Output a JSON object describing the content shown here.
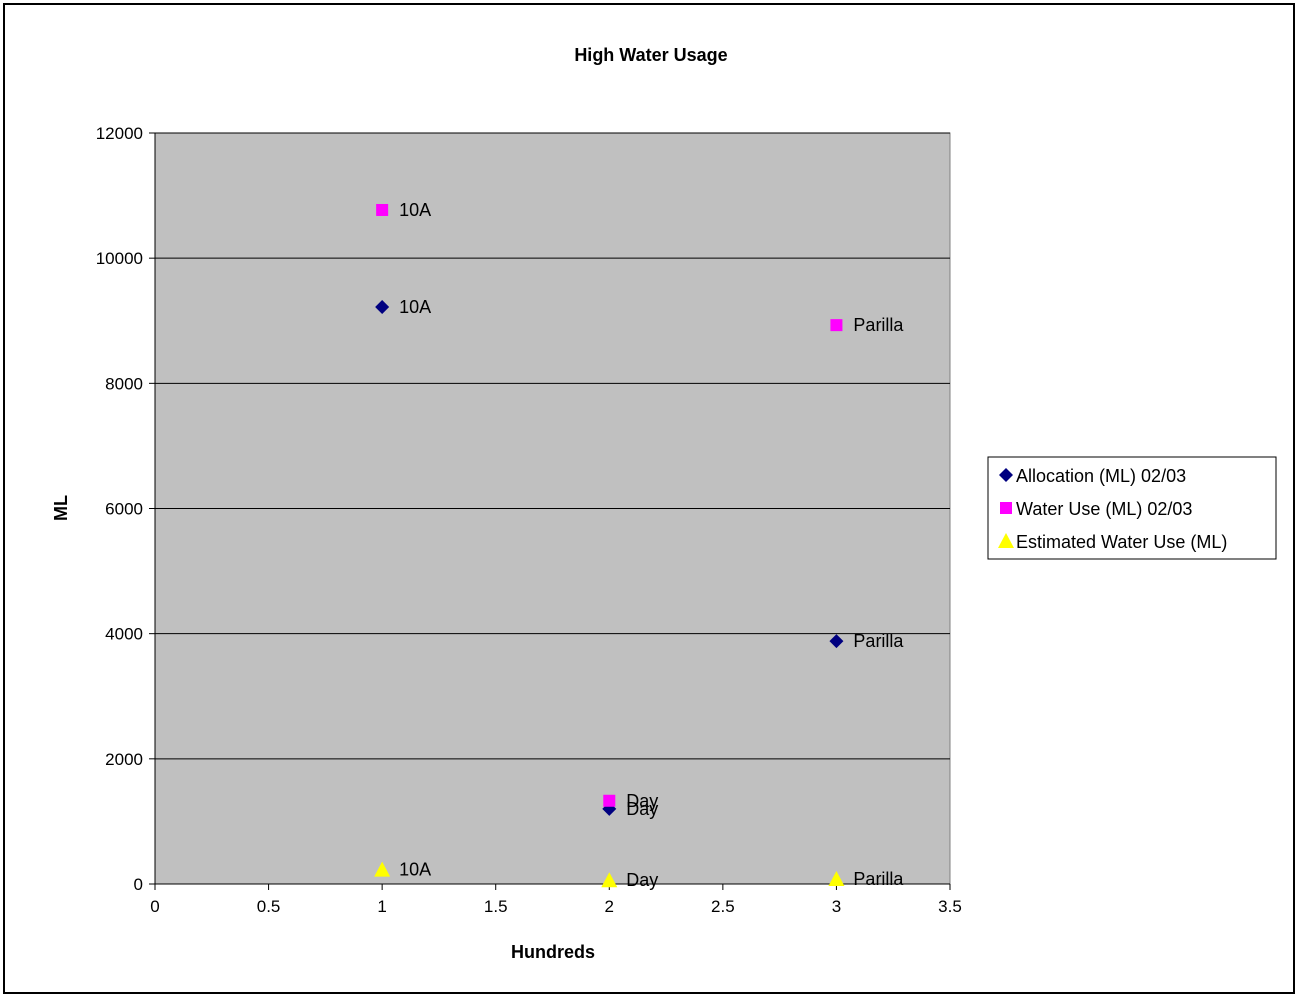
{
  "chart_data": {
    "type": "scatter",
    "title": "High Water Usage",
    "xlabel": "Hundreds",
    "ylabel": "ML",
    "xlim": [
      0,
      3.5
    ],
    "ylim": [
      0,
      12000
    ],
    "x_ticks": [
      "0",
      "0.5",
      "1",
      "1.5",
      "2",
      "2.5",
      "3",
      "3.5"
    ],
    "y_ticks": [
      "0",
      "2000",
      "4000",
      "6000",
      "8000",
      "10000",
      "12000"
    ],
    "grid": "horizontal",
    "legend_position": "right",
    "plot_background": "#c0c0c0",
    "series": [
      {
        "name": "Allocation (ML) 02/03",
        "marker": "diamond",
        "color": "#000080",
        "points": [
          {
            "x": 1,
            "y": 9220,
            "label": "10A"
          },
          {
            "x": 2,
            "y": 1200,
            "label": "Day"
          },
          {
            "x": 3,
            "y": 3880,
            "label": "Parilla"
          }
        ]
      },
      {
        "name": "Water Use (ML) 02/03",
        "marker": "square",
        "color": "#ff00ff",
        "points": [
          {
            "x": 1,
            "y": 10770,
            "label": "10A"
          },
          {
            "x": 2,
            "y": 1330,
            "label": "Day"
          },
          {
            "x": 3,
            "y": 8930,
            "label": "Parilla"
          }
        ]
      },
      {
        "name": "Estimated Water Use (ML)",
        "marker": "triangle",
        "color": "#ffff00",
        "points": [
          {
            "x": 1,
            "y": 230,
            "label": "10A"
          },
          {
            "x": 2,
            "y": 60,
            "label": "Day"
          },
          {
            "x": 3,
            "y": 80,
            "label": "Parilla"
          }
        ]
      }
    ]
  }
}
